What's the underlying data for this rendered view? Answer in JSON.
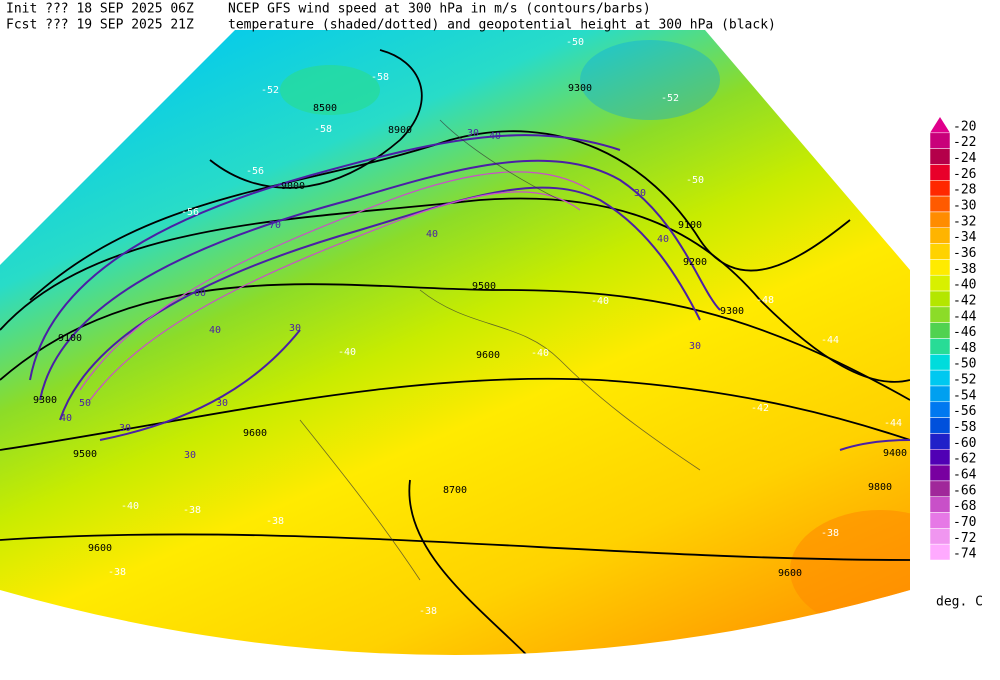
{
  "header": {
    "init": "Init  ??? 18 SEP 2025 06Z",
    "fcst": "Fcst ??? 19 SEP 2025 21Z",
    "title1": "NCEP GFS wind speed at 300 hPa in m/s (contours/barbs)",
    "title2": "temperature (shaded/dotted) and geopotential height at 300 hPa (black)"
  },
  "colorbar": {
    "levels": [
      -20,
      -22,
      -24,
      -26,
      -28,
      -30,
      -32,
      -34,
      -36,
      -38,
      -40,
      -42,
      -44,
      -46,
      -48,
      -50,
      -52,
      -54,
      -56,
      -58,
      -60,
      -62,
      -64,
      -66,
      -68,
      -70,
      -72,
      -74
    ],
    "colors": [
      "#e0008c",
      "#c8007a",
      "#b4004a",
      "#e8002a",
      "#ff2800",
      "#ff5a00",
      "#ff8c00",
      "#ffb400",
      "#ffd200",
      "#ffeb00",
      "#d8f000",
      "#b4e600",
      "#8cdc28",
      "#50d250",
      "#28dc96",
      "#00dcdc",
      "#00c8f0",
      "#00a0f0",
      "#0078f0",
      "#0050dc",
      "#2020c8",
      "#5000b4",
      "#7800a0",
      "#a0289a",
      "#c850c8",
      "#e678e6",
      "#f096f0",
      "#ffaaff"
    ],
    "unit": "deg. C"
  },
  "map_labels": [
    "9600",
    "9600",
    "9600",
    "9600",
    "9500",
    "9500",
    "9400",
    "9300",
    "9300",
    "9200",
    "9100",
    "9100",
    "9000",
    "8900",
    "8500",
    "8700",
    "9300",
    "9800",
    "30",
    "30",
    "30",
    "30",
    "30",
    "30",
    "40",
    "40",
    "40",
    "40",
    "50",
    "60",
    "70",
    "30",
    "40",
    "-38",
    "-40",
    "-38",
    "-38",
    "-38",
    "-40",
    "-40",
    "-40",
    "-42",
    "-44",
    "-44",
    "-38",
    "-50",
    "-52",
    "-48",
    "-56",
    "-56",
    "-58",
    "-52",
    "-50",
    "-58"
  ]
}
